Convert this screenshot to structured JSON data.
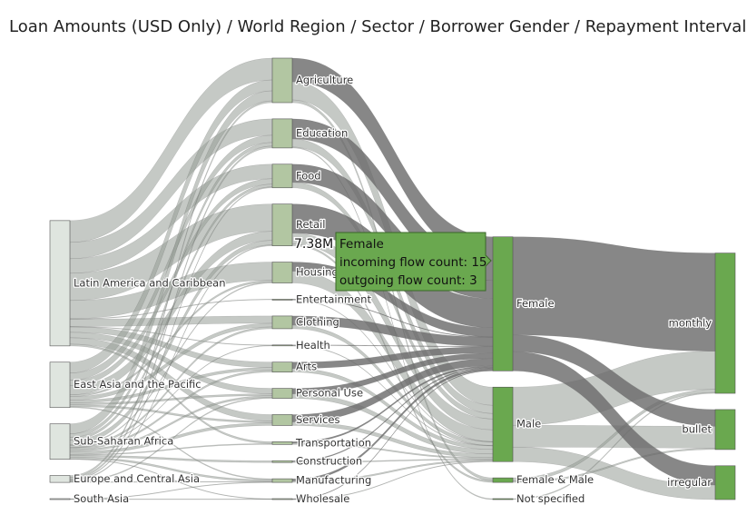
{
  "chart_data": {
    "type": "sankey",
    "title": "Loan Amounts (USD Only) / World Region / Sector / Borrower Gender / Repayment Interval",
    "nodes": [
      {
        "label": "Latin America and Caribbean",
        "color": "#dfe5df"
      },
      {
        "label": "East Asia and the Pacific",
        "color": "#dfe5df"
      },
      {
        "label": "Sub-Saharan Africa",
        "color": "#dfe5df"
      },
      {
        "label": "Europe and Central Asia",
        "color": "#dfe5df"
      },
      {
        "label": "South Asia",
        "color": "#dfe5df"
      },
      {
        "label": "Agriculture",
        "color": "#b2c6a2"
      },
      {
        "label": "Education",
        "color": "#b2c6a2"
      },
      {
        "label": "Food",
        "color": "#b2c6a2"
      },
      {
        "label": "Retail",
        "color": "#b2c6a2"
      },
      {
        "label": "Housing",
        "color": "#b2c6a2"
      },
      {
        "label": "Entertainment",
        "color": "#b2c6a2"
      },
      {
        "label": "Clothing",
        "color": "#b2c6a2"
      },
      {
        "label": "Health",
        "color": "#b2c6a2"
      },
      {
        "label": "Arts",
        "color": "#b2c6a2"
      },
      {
        "label": "Personal Use",
        "color": "#b2c6a2"
      },
      {
        "label": "Services",
        "color": "#b2c6a2"
      },
      {
        "label": "Transportation",
        "color": "#b2c6a2"
      },
      {
        "label": "Construction",
        "color": "#b2c6a2"
      },
      {
        "label": "Manufacturing",
        "color": "#b2c6a2"
      },
      {
        "label": "Wholesale",
        "color": "#b2c6a2"
      },
      {
        "label": "Female",
        "color": "#6aa84f"
      },
      {
        "label": "Male",
        "color": "#6aa84f"
      },
      {
        "label": "Female & Male",
        "color": "#6aa84f"
      },
      {
        "label": "Not specified",
        "color": "#6aa84f"
      },
      {
        "label": "monthly",
        "color": "#6aa84f"
      },
      {
        "label": "bullet",
        "color": "#6aa84f"
      },
      {
        "label": "irregular",
        "color": "#6aa84f"
      }
    ],
    "links": [
      {
        "source": 0,
        "target": 5,
        "value": 1.2
      },
      {
        "source": 0,
        "target": 6,
        "value": 0.9
      },
      {
        "source": 0,
        "target": 7,
        "value": 0.8
      },
      {
        "source": 0,
        "target": 8,
        "value": 1.5
      },
      {
        "source": 0,
        "target": 9,
        "value": 1.0
      },
      {
        "source": 0,
        "target": 11,
        "value": 0.4
      },
      {
        "source": 0,
        "target": 13,
        "value": 0.3
      },
      {
        "source": 0,
        "target": 14,
        "value": 0.3
      },
      {
        "source": 0,
        "target": 15,
        "value": 0.35
      },
      {
        "source": 0,
        "target": 16,
        "value": 0.1
      },
      {
        "source": 0,
        "target": 10,
        "value": 0.03
      },
      {
        "source": 0,
        "target": 12,
        "value": 0.02
      },
      {
        "source": 1,
        "target": 5,
        "value": 0.6
      },
      {
        "source": 1,
        "target": 6,
        "value": 0.4
      },
      {
        "source": 1,
        "target": 7,
        "value": 0.3
      },
      {
        "source": 1,
        "target": 8,
        "value": 0.5
      },
      {
        "source": 1,
        "target": 9,
        "value": 0.1
      },
      {
        "source": 1,
        "target": 11,
        "value": 0.2
      },
      {
        "source": 1,
        "target": 13,
        "value": 0.15
      },
      {
        "source": 1,
        "target": 14,
        "value": 0.1
      },
      {
        "source": 1,
        "target": 15,
        "value": 0.1
      },
      {
        "source": 1,
        "target": 18,
        "value": 0.05
      },
      {
        "source": 2,
        "target": 5,
        "value": 0.55
      },
      {
        "source": 2,
        "target": 6,
        "value": 0.2
      },
      {
        "source": 2,
        "target": 7,
        "value": 0.15
      },
      {
        "source": 2,
        "target": 8,
        "value": 0.25
      },
      {
        "source": 2,
        "target": 9,
        "value": 0.05
      },
      {
        "source": 2,
        "target": 11,
        "value": 0.1
      },
      {
        "source": 2,
        "target": 13,
        "value": 0.1
      },
      {
        "source": 2,
        "target": 14,
        "value": 0.1
      },
      {
        "source": 2,
        "target": 15,
        "value": 0.15
      },
      {
        "source": 2,
        "target": 16,
        "value": 0.05
      },
      {
        "source": 2,
        "target": 17,
        "value": 0.1
      },
      {
        "source": 2,
        "target": 18,
        "value": 0.1
      },
      {
        "source": 2,
        "target": 12,
        "value": 0.03
      },
      {
        "source": 2,
        "target": 19,
        "value": 0.02
      },
      {
        "source": 3,
        "target": 5,
        "value": 0.1
      },
      {
        "source": 3,
        "target": 6,
        "value": 0.1
      },
      {
        "source": 3,
        "target": 7,
        "value": 0.05
      },
      {
        "source": 3,
        "target": 8,
        "value": 0.05
      },
      {
        "source": 3,
        "target": 14,
        "value": 0.05
      },
      {
        "source": 3,
        "target": 18,
        "value": 0.03
      },
      {
        "source": 4,
        "target": 19,
        "value": 0.03
      },
      {
        "source": 4,
        "target": 18,
        "value": 0.02
      },
      {
        "source": 5,
        "target": 20,
        "value": 1.3
      },
      {
        "source": 6,
        "target": 20,
        "value": 1.1
      },
      {
        "source": 7,
        "target": 20,
        "value": 1.0
      },
      {
        "source": 8,
        "target": 20,
        "value": 1.6
      },
      {
        "source": 9,
        "target": 20,
        "value": 0.5
      },
      {
        "source": 10,
        "target": 20,
        "value": 0.02
      },
      {
        "source": 11,
        "target": 20,
        "value": 0.5
      },
      {
        "source": 12,
        "target": 20,
        "value": 0.03
      },
      {
        "source": 13,
        "target": 20,
        "value": 0.35
      },
      {
        "source": 14,
        "target": 20,
        "value": 0.3
      },
      {
        "source": 15,
        "target": 20,
        "value": 0.4
      },
      {
        "source": 16,
        "target": 20,
        "value": 0.08
      },
      {
        "source": 17,
        "target": 20,
        "value": 0.05
      },
      {
        "source": 18,
        "target": 20,
        "value": 0.12
      },
      {
        "source": 19,
        "target": 20,
        "value": 0.03
      },
      {
        "source": 5,
        "target": 21,
        "value": 1.0
      },
      {
        "source": 6,
        "target": 21,
        "value": 0.45
      },
      {
        "source": 7,
        "target": 21,
        "value": 0.3
      },
      {
        "source": 8,
        "target": 21,
        "value": 0.6
      },
      {
        "source": 9,
        "target": 21,
        "value": 0.65
      },
      {
        "source": 10,
        "target": 21,
        "value": 0.01
      },
      {
        "source": 11,
        "target": 21,
        "value": 0.2
      },
      {
        "source": 12,
        "target": 21,
        "value": 0.02
      },
      {
        "source": 13,
        "target": 21,
        "value": 0.2
      },
      {
        "source": 14,
        "target": 21,
        "value": 0.25
      },
      {
        "source": 15,
        "target": 21,
        "value": 0.2
      },
      {
        "source": 16,
        "target": 21,
        "value": 0.07
      },
      {
        "source": 17,
        "target": 21,
        "value": 0.05
      },
      {
        "source": 18,
        "target": 21,
        "value": 0.08
      },
      {
        "source": 19,
        "target": 21,
        "value": 0.02
      },
      {
        "source": 5,
        "target": 22,
        "value": 0.15
      },
      {
        "source": 8,
        "target": 22,
        "value": 0.1
      },
      {
        "source": 6,
        "target": 23,
        "value": 0.05
      },
      {
        "source": 20,
        "target": 24,
        "value": 5.4
      },
      {
        "source": 20,
        "target": 25,
        "value": 0.92
      },
      {
        "source": 20,
        "target": 26,
        "value": 1.06
      },
      {
        "source": 21,
        "target": 24,
        "value": 2.1
      },
      {
        "source": 21,
        "target": 25,
        "value": 1.2
      },
      {
        "source": 21,
        "target": 26,
        "value": 0.8
      },
      {
        "source": 22,
        "target": 24,
        "value": 0.17
      },
      {
        "source": 22,
        "target": 25,
        "value": 0.08
      },
      {
        "source": 23,
        "target": 24,
        "value": 0.05
      }
    ],
    "link_color": "rgba(150,156,150,0.55)",
    "highlight_link_color": "rgba(105,105,105,0.8)",
    "tooltip": {
      "node": 20,
      "value": 7.38,
      "value_label": "7.38M",
      "incoming": "incoming flow count: 15",
      "outgoing": "outgoing flow count: 3"
    }
  }
}
